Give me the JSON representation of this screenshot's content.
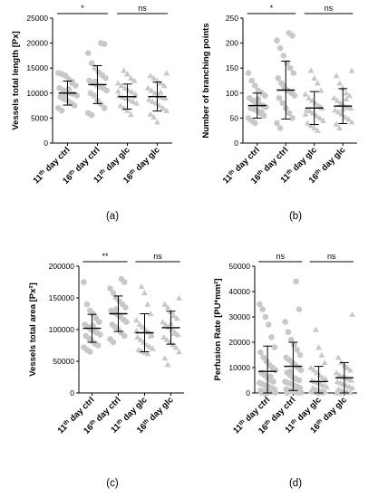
{
  "colors": {
    "points": "#c8c8c8",
    "axis": "#000000",
    "summary": "#000000"
  },
  "chart_data": [
    {
      "panel_label": "(a)",
      "type": "scatter",
      "ylabel": "Vessels total length [Px]",
      "ylim": [
        0,
        25000
      ],
      "yticks": [
        "0",
        "5000",
        "10000",
        "15000",
        "20000",
        "25000"
      ],
      "yticks_values": [
        0,
        5000,
        10000,
        15000,
        20000,
        25000
      ],
      "categories": [
        {
          "base": "11",
          "sup": "th",
          "rest": " day ctrl"
        },
        {
          "base": "16",
          "sup": "th",
          "rest": " day ctrl"
        },
        {
          "base": "11",
          "sup": "th",
          "rest": " day glc"
        },
        {
          "base": "16",
          "sup": "th",
          "rest": " day glc"
        }
      ],
      "series": [
        {
          "marker": "circle",
          "mean": 10000,
          "sd": 2400,
          "points": [
            14000,
            13800,
            13500,
            12800,
            12000,
            11500,
            11000,
            10600,
            10300,
            10000,
            9800,
            9500,
            9200,
            8800,
            8500,
            8000,
            7500,
            7000,
            6500,
            9600,
            10800,
            12300
          ]
        },
        {
          "marker": "circle",
          "mean": 11700,
          "sd": 3800,
          "points": [
            20000,
            19800,
            18000,
            16000,
            15000,
            14200,
            13600,
            13000,
            12500,
            12000,
            11700,
            11300,
            11000,
            10500,
            10000,
            9500,
            8500,
            7800,
            7000,
            6000,
            5600,
            12300
          ]
        },
        {
          "marker": "triangle",
          "mean": 9300,
          "sd": 2500,
          "points": [
            14500,
            13800,
            13000,
            12500,
            12000,
            11500,
            11000,
            10600,
            10200,
            9800,
            9500,
            9200,
            9000,
            8700,
            8300,
            8000,
            7500,
            7000,
            6500,
            5700,
            9400,
            10400
          ]
        },
        {
          "marker": "triangle",
          "mean": 9300,
          "sd": 2900,
          "points": [
            14000,
            13500,
            13000,
            12500,
            12000,
            11500,
            11000,
            10500,
            10000,
            9500,
            9200,
            9000,
            8700,
            8300,
            8000,
            7500,
            7000,
            6500,
            5800,
            5200,
            4200,
            10200
          ]
        }
      ],
      "comparisons": [
        {
          "from": 0,
          "to": 1,
          "label": "*"
        },
        {
          "from": 2,
          "to": 3,
          "label": "ns"
        }
      ]
    },
    {
      "panel_label": "(b)",
      "type": "scatter",
      "ylabel": "Number of branching points",
      "ylim": [
        0,
        250
      ],
      "yticks": [
        "0",
        "50",
        "100",
        "150",
        "200",
        "250"
      ],
      "yticks_values": [
        0,
        50,
        100,
        150,
        200,
        250
      ],
      "categories": [
        {
          "base": "11",
          "sup": "th",
          "rest": " day ctrl"
        },
        {
          "base": "16",
          "sup": "th",
          "rest": " day ctrl"
        },
        {
          "base": "11",
          "sup": "th",
          "rest": " day glc"
        },
        {
          "base": "16",
          "sup": "th",
          "rest": " day glc"
        }
      ],
      "series": [
        {
          "marker": "circle",
          "mean": 75,
          "sd": 25,
          "points": [
            140,
            125,
            115,
            105,
            100,
            95,
            90,
            85,
            80,
            78,
            75,
            72,
            70,
            68,
            65,
            60,
            55,
            50,
            45,
            40,
            88,
            62
          ]
        },
        {
          "marker": "circle",
          "mean": 106,
          "sd": 58,
          "points": [
            220,
            215,
            205,
            190,
            175,
            160,
            150,
            140,
            130,
            120,
            110,
            105,
            100,
            95,
            90,
            80,
            70,
            60,
            50,
            40,
            30,
            115
          ]
        },
        {
          "marker": "triangle",
          "mean": 70,
          "sd": 33,
          "points": [
            145,
            130,
            120,
            105,
            98,
            90,
            85,
            80,
            75,
            70,
            67,
            64,
            60,
            55,
            50,
            45,
            40,
            35,
            30,
            25,
            72,
            58
          ]
        },
        {
          "marker": "triangle",
          "mean": 74,
          "sd": 35,
          "points": [
            145,
            135,
            120,
            110,
            100,
            95,
            90,
            85,
            80,
            75,
            72,
            70,
            66,
            62,
            58,
            52,
            48,
            42,
            38,
            30,
            68,
            88
          ]
        }
      ],
      "comparisons": [
        {
          "from": 0,
          "to": 1,
          "label": "*"
        },
        {
          "from": 2,
          "to": 3,
          "label": "ns"
        }
      ]
    },
    {
      "panel_label": "(c)",
      "type": "scatter",
      "ylabel": "Vessels total area [Px²]",
      "ylim": [
        0,
        200000
      ],
      "yticks": [
        "0",
        "50000",
        "100000",
        "150000",
        "200000"
      ],
      "yticks_values": [
        0,
        50000,
        100000,
        150000,
        200000
      ],
      "categories": [
        {
          "base": "11",
          "sup": "th",
          "rest": " day ctrl"
        },
        {
          "base": "16",
          "sup": "th",
          "rest": " day ctrl"
        },
        {
          "base": "11",
          "sup": "th",
          "rest": " day glc"
        },
        {
          "base": "16",
          "sup": "th",
          "rest": " day glc"
        }
      ],
      "series": [
        {
          "marker": "circle",
          "mean": 102000,
          "sd": 22000,
          "points": [
            175000,
            140000,
            130000,
            125000,
            118000,
            112000,
            108000,
            104000,
            100000,
            98000,
            95000,
            92000,
            90000,
            86000,
            82000,
            78000,
            75000,
            72000,
            68000,
            65000,
            106000,
            96000
          ]
        },
        {
          "marker": "circle",
          "mean": 125000,
          "sd": 28000,
          "points": [
            180000,
            175000,
            165000,
            158000,
            150000,
            145000,
            140000,
            135000,
            130000,
            127000,
            124000,
            120000,
            116000,
            112000,
            108000,
            104000,
            100000,
            95000,
            90000,
            85000,
            80000,
            132000
          ]
        },
        {
          "marker": "triangle",
          "mean": 95000,
          "sd": 30000,
          "points": [
            168000,
            158000,
            140000,
            125000,
            115000,
            108000,
            104000,
            100000,
            96000,
            92000,
            88000,
            84000,
            80000,
            76000,
            73000,
            70000,
            68000,
            66000,
            64000,
            62000,
            90000,
            98000
          ]
        },
        {
          "marker": "triangle",
          "mean": 103000,
          "sd": 26000,
          "points": [
            150000,
            140000,
            135000,
            128000,
            122000,
            118000,
            112000,
            108000,
            104000,
            100000,
            96000,
            92000,
            88000,
            84000,
            80000,
            76000,
            72000,
            65000,
            55000,
            45000,
            110000,
            94000
          ]
        }
      ],
      "comparisons": [
        {
          "from": 0,
          "to": 1,
          "label": "**"
        },
        {
          "from": 2,
          "to": 3,
          "label": "ns"
        }
      ]
    },
    {
      "panel_label": "(d)",
      "type": "scatter",
      "ylabel": "Perfusion Rate [PU*mm²]",
      "ylim": [
        0,
        50000
      ],
      "yticks": [
        "0",
        "10000",
        "20000",
        "30000",
        "40000",
        "50000"
      ],
      "yticks_values": [
        0,
        10000,
        20000,
        30000,
        40000,
        50000
      ],
      "categories": [
        {
          "base": "11",
          "sup": "th",
          "rest": " day ctrl"
        },
        {
          "base": "16",
          "sup": "th",
          "rest": " day ctrl"
        },
        {
          "base": "11",
          "sup": "th",
          "rest": " day glc"
        },
        {
          "base": "16",
          "sup": "th",
          "rest": " day glc"
        }
      ],
      "series": [
        {
          "marker": "circle",
          "mean": 8500,
          "sd": 10000,
          "points": [
            35000,
            33000,
            30000,
            27000,
            22000,
            18000,
            16000,
            14000,
            12500,
            11000,
            10000,
            9000,
            8000,
            7000,
            6000,
            5000,
            4500,
            4000,
            3500,
            3000,
            2500,
            2000,
            1500,
            1000,
            800,
            600,
            400,
            300,
            200,
            100,
            50,
            0,
            6500,
            9500
          ]
        },
        {
          "marker": "circle",
          "mean": 10500,
          "sd": 9500,
          "points": [
            44000,
            33000,
            28000,
            24000,
            21000,
            19000,
            17000,
            15000,
            14000,
            13000,
            12000,
            11000,
            10000,
            9000,
            8000,
            7000,
            6000,
            5500,
            5000,
            4500,
            4000,
            3500,
            3000,
            2500,
            2000,
            1500,
            1000,
            700,
            400,
            200,
            100,
            0,
            8500,
            11500
          ]
        },
        {
          "marker": "triangle",
          "mean": 4500,
          "sd": 6000,
          "points": [
            25000,
            18000,
            15000,
            12000,
            10000,
            9000,
            8000,
            7000,
            6000,
            5500,
            5000,
            4500,
            4000,
            3500,
            3000,
            2500,
            2000,
            1500,
            1200,
            1000,
            800,
            600,
            400,
            200,
            100,
            0
          ]
        },
        {
          "marker": "triangle",
          "mean": 6000,
          "sd": 6000,
          "points": [
            31000,
            14000,
            12000,
            11000,
            10000,
            9000,
            8000,
            7000,
            6500,
            6000,
            5500,
            5000,
            4500,
            4000,
            3500,
            3000,
            2500,
            2000,
            1500,
            1000,
            700,
            400,
            200,
            100,
            0
          ]
        }
      ],
      "comparisons": [
        {
          "from": 0,
          "to": 1,
          "label": "ns"
        },
        {
          "from": 2,
          "to": 3,
          "label": "ns"
        }
      ]
    }
  ]
}
